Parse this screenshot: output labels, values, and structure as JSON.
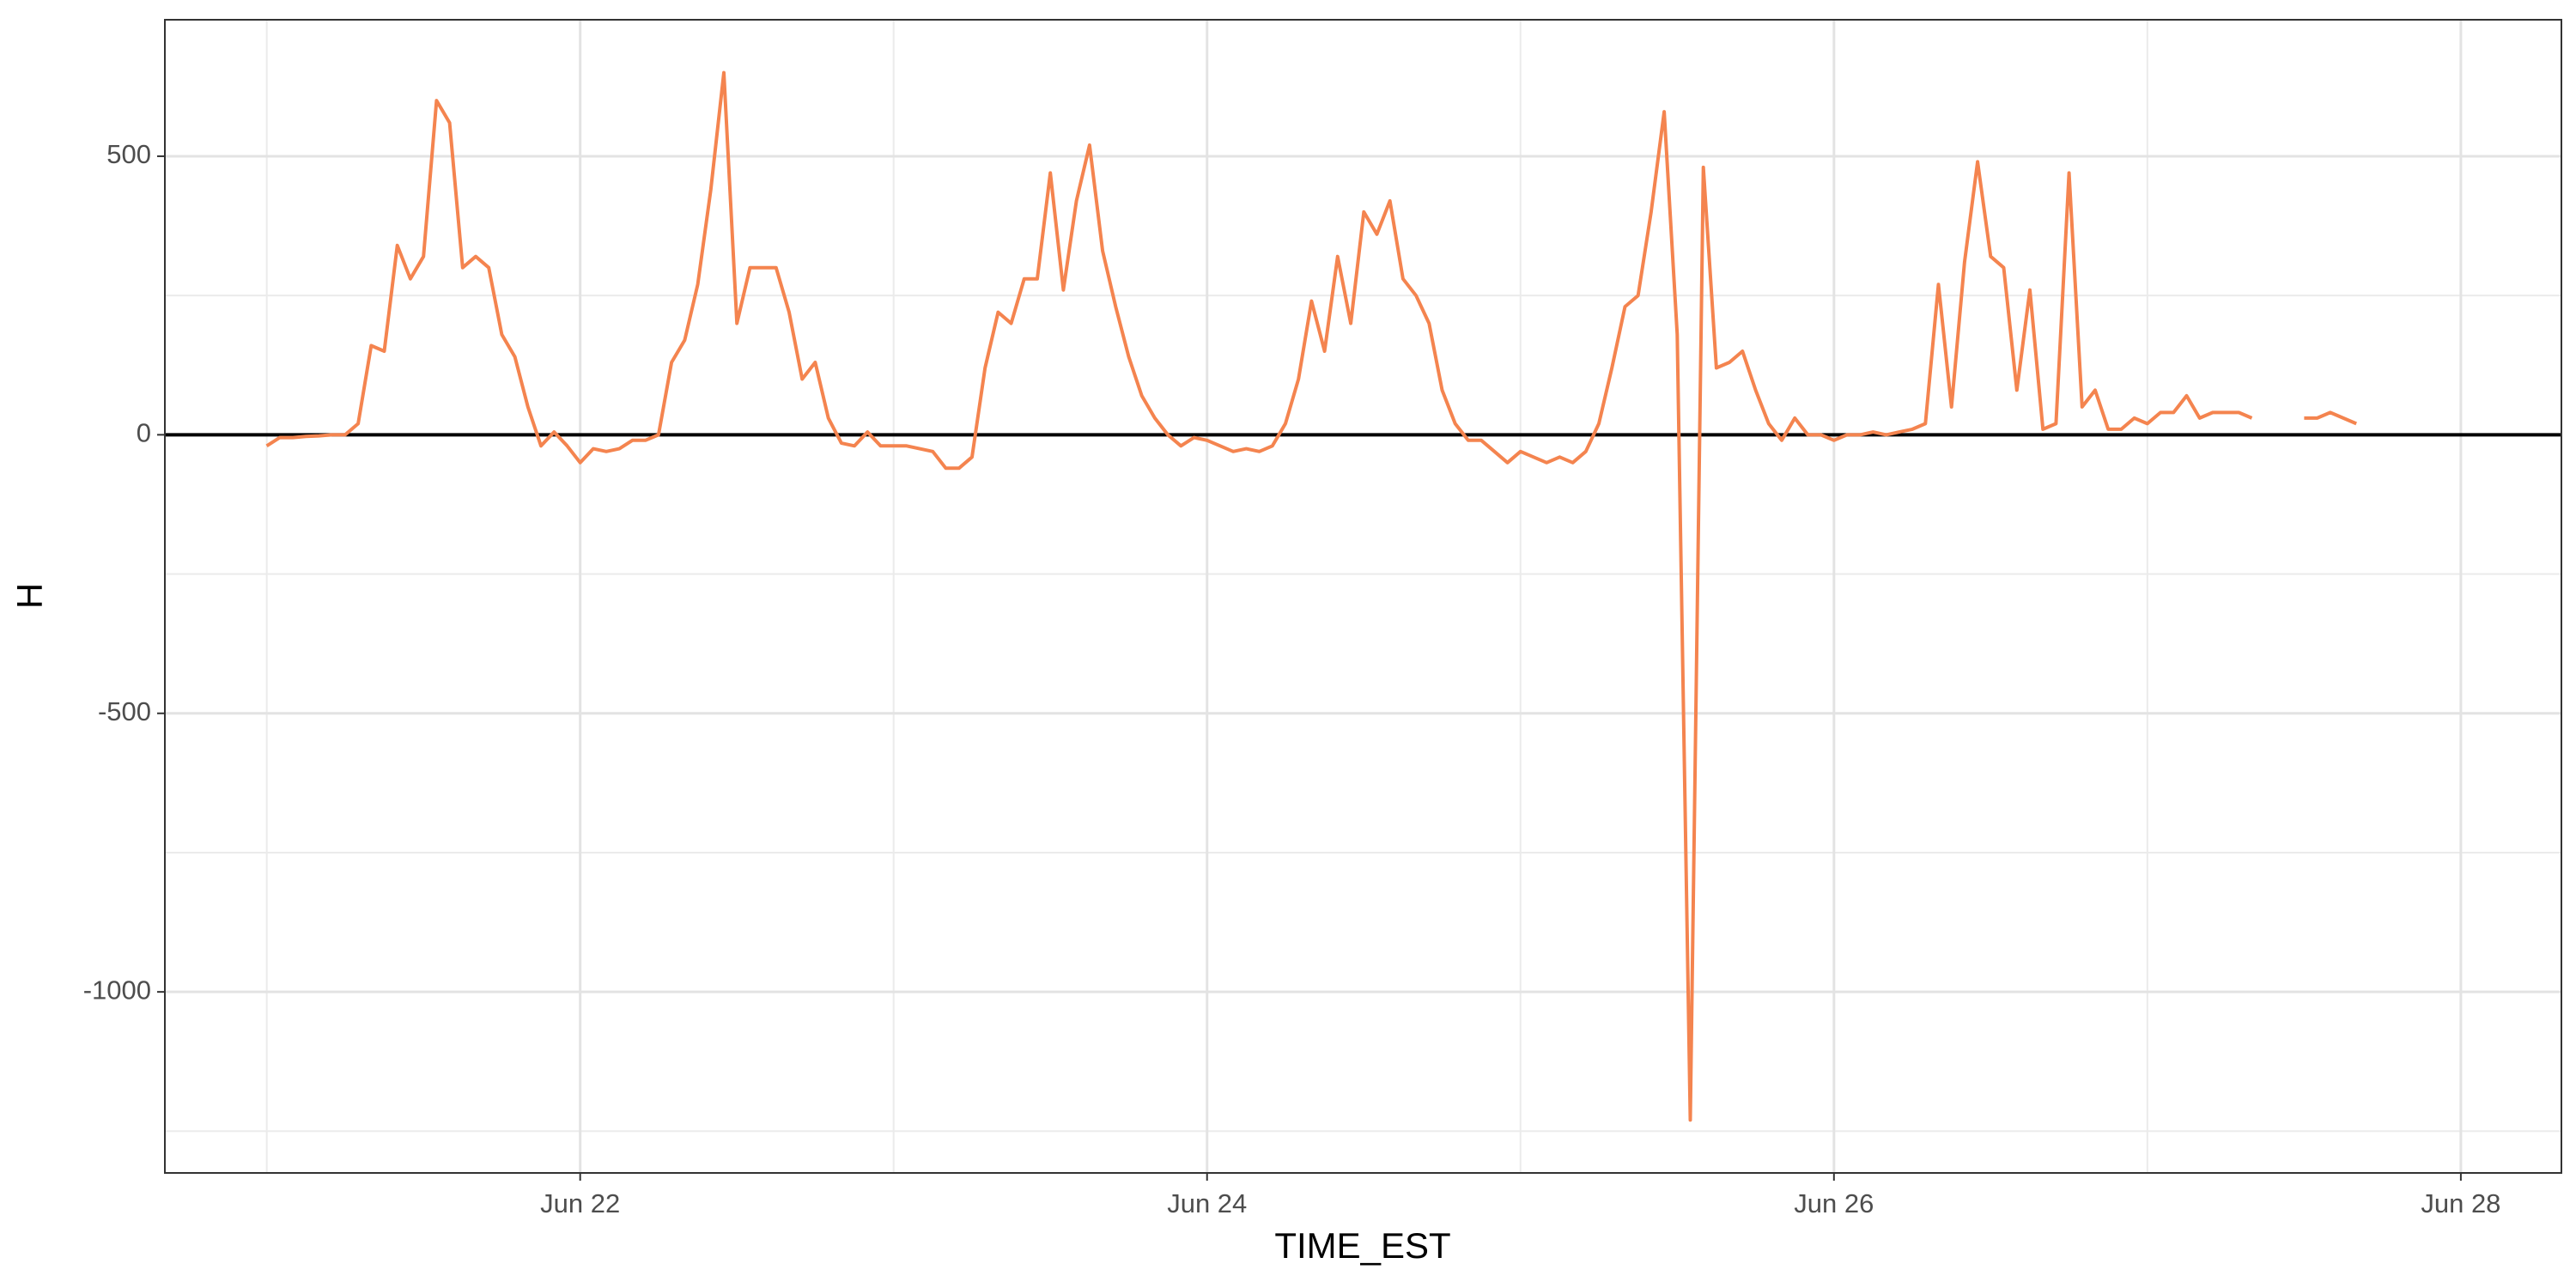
{
  "chart_data": {
    "type": "line",
    "x_label": "TIME_EST",
    "y_label": "H",
    "xlim": [
      -7.8,
      175.7
    ],
    "ylim": [
      -1325,
      745
    ],
    "xticks": [
      {
        "value": 24,
        "label": "Jun 22"
      },
      {
        "value": 72,
        "label": "Jun 24"
      },
      {
        "value": 120,
        "label": "Jun 26"
      },
      {
        "value": 168,
        "label": "Jun 28"
      }
    ],
    "minor_xticks": [
      0,
      48,
      96,
      144
    ],
    "yticks": [
      {
        "value": -1000,
        "label": "-1000"
      },
      {
        "value": -500,
        "label": "-500"
      },
      0,
      500
    ],
    "minor_yticks": [
      -1250,
      -750,
      -250,
      250
    ],
    "grid": true,
    "reference_line": 0,
    "x": [
      0,
      1,
      2,
      3,
      4,
      5,
      6,
      7,
      8,
      9,
      10,
      11,
      12,
      13,
      14,
      15,
      16,
      17,
      18,
      19,
      20,
      21,
      22,
      23,
      24,
      25,
      26,
      27,
      28,
      29,
      30,
      31,
      32,
      33,
      34,
      35,
      36,
      37,
      38,
      39,
      40,
      41,
      42,
      43,
      44,
      45,
      46,
      47,
      48,
      49,
      50,
      51,
      52,
      53,
      54,
      55,
      56,
      57,
      58,
      59,
      60,
      61,
      62,
      63,
      64,
      65,
      66,
      67,
      68,
      69,
      70,
      71,
      72,
      73,
      74,
      75,
      76,
      77,
      78,
      79,
      80,
      81,
      82,
      83,
      84,
      85,
      86,
      87,
      88,
      89,
      90,
      91,
      92,
      93,
      94,
      95,
      96,
      97,
      98,
      99,
      100,
      101,
      102,
      103,
      104,
      105,
      106,
      107,
      108,
      109,
      110,
      111,
      112,
      113,
      114,
      115,
      116,
      117,
      118,
      119,
      120,
      121,
      122,
      123,
      124,
      125,
      126,
      127,
      128,
      129,
      130,
      131,
      132,
      133,
      134,
      135,
      136,
      137,
      138,
      139,
      140,
      141,
      142,
      143,
      144,
      145,
      146,
      147,
      148,
      149,
      150,
      151,
      152,
      153,
      154,
      155,
      156,
      157,
      158,
      159,
      160
    ],
    "series": [
      {
        "name": "H",
        "color": "#f4844f",
        "values": [
          -20,
          -5,
          -5,
          -3,
          -2,
          0,
          0,
          20,
          160,
          150,
          340,
          280,
          320,
          600,
          560,
          300,
          320,
          300,
          180,
          140,
          50,
          -20,
          5,
          -20,
          -50,
          -25,
          -30,
          -25,
          -10,
          -10,
          0,
          130,
          170,
          270,
          440,
          650,
          200,
          300,
          300,
          300,
          220,
          100,
          130,
          30,
          -15,
          -20,
          5,
          -20,
          -20,
          -20,
          -25,
          -30,
          -60,
          -60,
          -40,
          120,
          220,
          200,
          280,
          280,
          470,
          260,
          420,
          520,
          330,
          230,
          140,
          70,
          30,
          0,
          -20,
          -5,
          -10,
          -20,
          -30,
          -25,
          -30,
          -20,
          20,
          100,
          240,
          150,
          320,
          200,
          400,
          360,
          420,
          280,
          250,
          200,
          80,
          20,
          -10,
          -10,
          -30,
          -50,
          -30,
          -40,
          -50,
          -40,
          -50,
          -30,
          20,
          120,
          230,
          250,
          400,
          580,
          180,
          -1230,
          480,
          120,
          130,
          150,
          80,
          20,
          -10,
          30,
          0,
          0,
          -10,
          0,
          0,
          5,
          0,
          5,
          10,
          20,
          270,
          50,
          310,
          490,
          320,
          300,
          80,
          260,
          10,
          20,
          470,
          50,
          80,
          10,
          10,
          30,
          20,
          40,
          40,
          70,
          30,
          40,
          40,
          40,
          30,
          null,
          null,
          null,
          30,
          30,
          40,
          30,
          20
        ]
      }
    ]
  }
}
